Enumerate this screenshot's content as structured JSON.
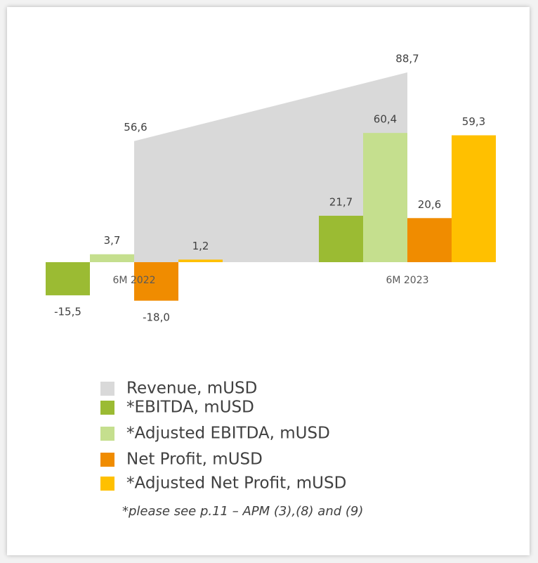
{
  "chart_data": {
    "type": "bar",
    "categories": [
      "6M 2022",
      "6M 2023"
    ],
    "series": [
      {
        "name": "Revenue, mUSD",
        "type": "area",
        "color": "#d9d9d9",
        "values": [
          56.6,
          88.7
        ],
        "value_labels": [
          "56,6",
          "88,7"
        ]
      },
      {
        "name": "*EBITDA, mUSD",
        "color": "#9bbb33",
        "values": [
          -15.5,
          21.7
        ],
        "value_labels": [
          "-15,5",
          "21,7"
        ]
      },
      {
        "name": "*Adjusted EBITDA, mUSD",
        "color": "#c5df8e",
        "values": [
          3.7,
          60.4
        ],
        "value_labels": [
          "3,7",
          "60,4"
        ]
      },
      {
        "name": "Net Profit, mUSD",
        "color": "#f08c00",
        "values": [
          -18.0,
          20.6
        ],
        "value_labels": [
          "-18,0",
          "20,6"
        ]
      },
      {
        "name": "*Adjusted Net Profit, mUSD",
        "color": "#ffc000",
        "values": [
          1.2,
          59.3
        ],
        "value_labels": [
          "1,2",
          "59,3"
        ]
      }
    ],
    "note": "*please see p.11 – APM (3),(8) and (9)"
  }
}
